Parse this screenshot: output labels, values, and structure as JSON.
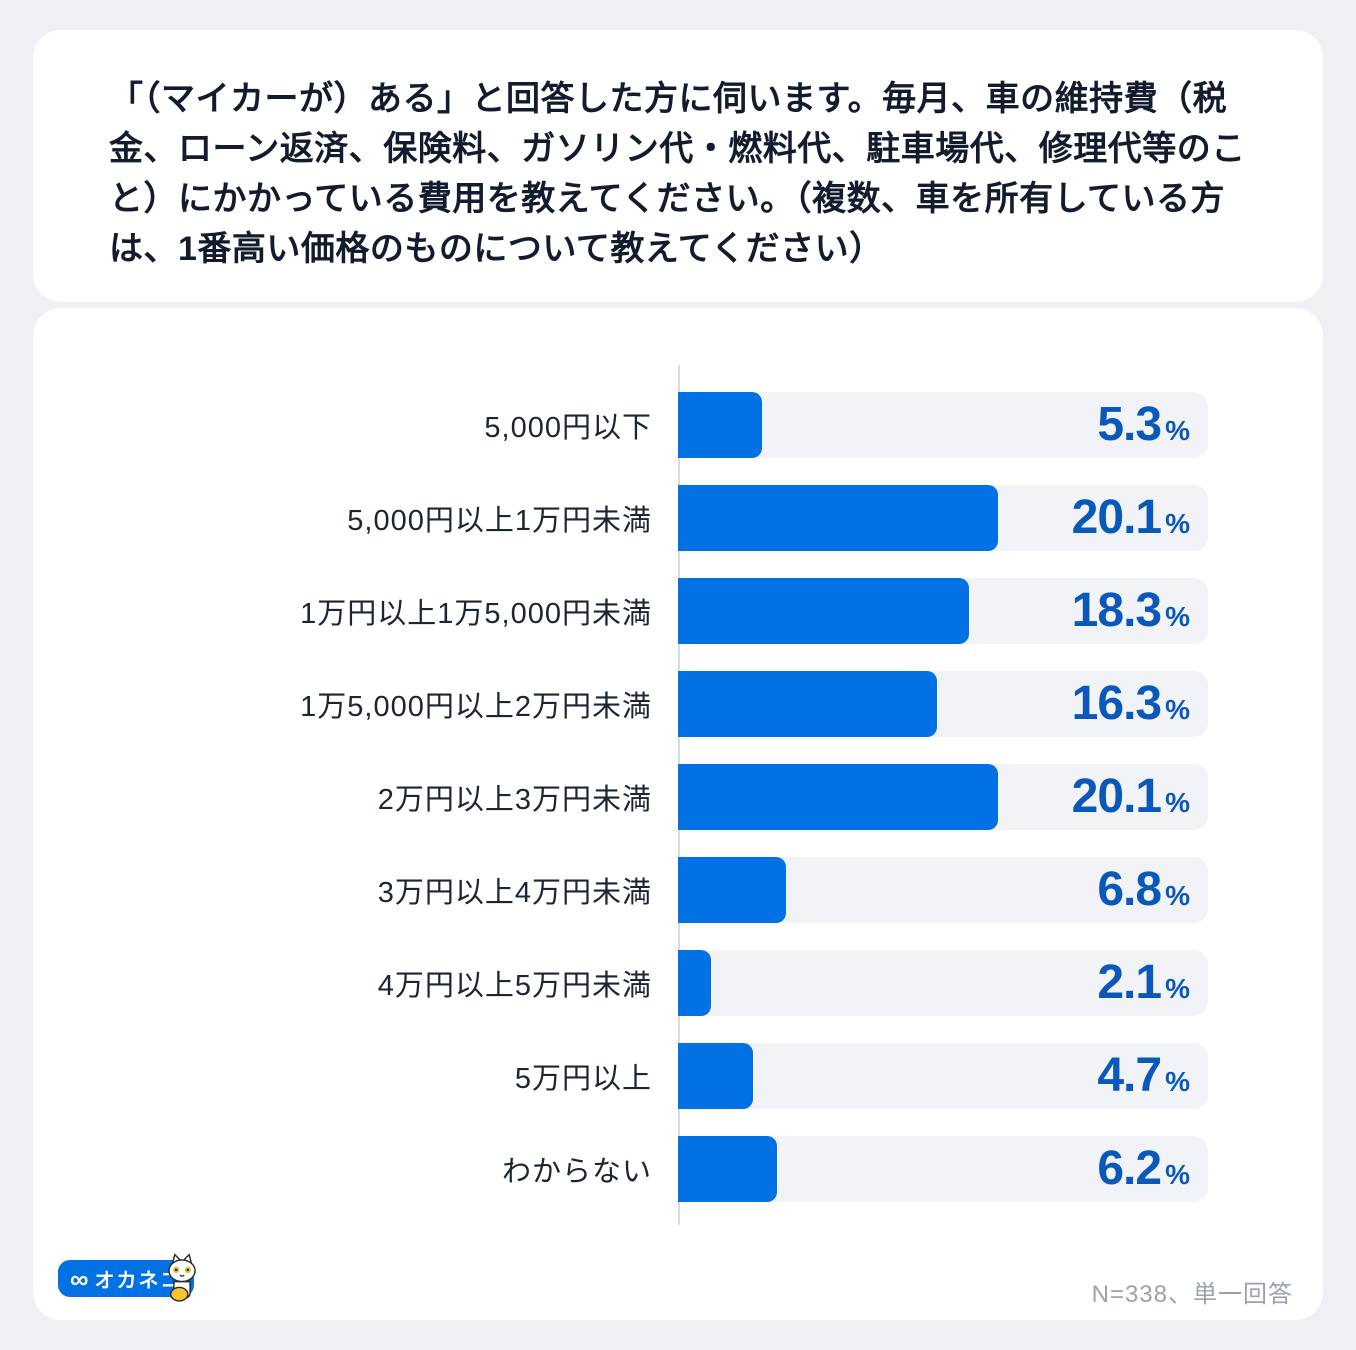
{
  "question_card": {
    "text": "「（マイカーが）ある」と回答した方に伺います。毎月、車の維持費（税金、ローン返済、保険料、ガソリン代・燃料代、駐車場代、修理代等のこと）にかかっている費用を教えてください。（複数、車を所有している方は、1番高い価格のものについて教えてください）"
  },
  "footer": {
    "logo_infinity": "∞",
    "logo_text": "オカネコ",
    "note": "N=338、単一回答"
  },
  "colors": {
    "page_bg": "#eef0f3",
    "card": "#ffffff",
    "bar_fill": "#0271e4",
    "value_text": "#0b58bb",
    "track": "#f1f3f6",
    "axis": "#d9dce1",
    "label_text": "#1b2533",
    "title_text": "#131c2e",
    "note_text": "#9aa2ae",
    "logo_bg": "#0271e4"
  },
  "chart_data": {
    "type": "bar",
    "orientation": "horizontal",
    "title": "「（マイカーが）ある」と回答した方に伺います。毎月、車の維持費（税金、ローン返済、保険料、ガソリン代・燃料代、駐車場代、修理代等のこと）にかかっている費用を教えてください。（複数、車を所有している方は、1番高い価格のものについて教えてください）",
    "categories": [
      "5,000円以下",
      "5,000円以上1万円未満",
      "1万円以上1万5,000円未満",
      "1万5,000円以上2万円未満",
      "2万円以上3万円未満",
      "3万円以上4万円未満",
      "4万円以上5万円未満",
      "5万円以上",
      "わからない"
    ],
    "values": [
      5.3,
      20.1,
      18.3,
      16.3,
      20.1,
      6.8,
      2.1,
      4.7,
      6.2
    ],
    "value_labels": [
      "5.3",
      "20.1",
      "18.3",
      "16.3",
      "20.1",
      "6.8",
      "2.1",
      "4.7",
      "6.2"
    ],
    "unit": "%",
    "xlim": [
      0,
      33.3
    ],
    "bar_width_percent_per_point": 3,
    "grid": false,
    "legend": false,
    "sample_note": "N=338、単一回答"
  }
}
